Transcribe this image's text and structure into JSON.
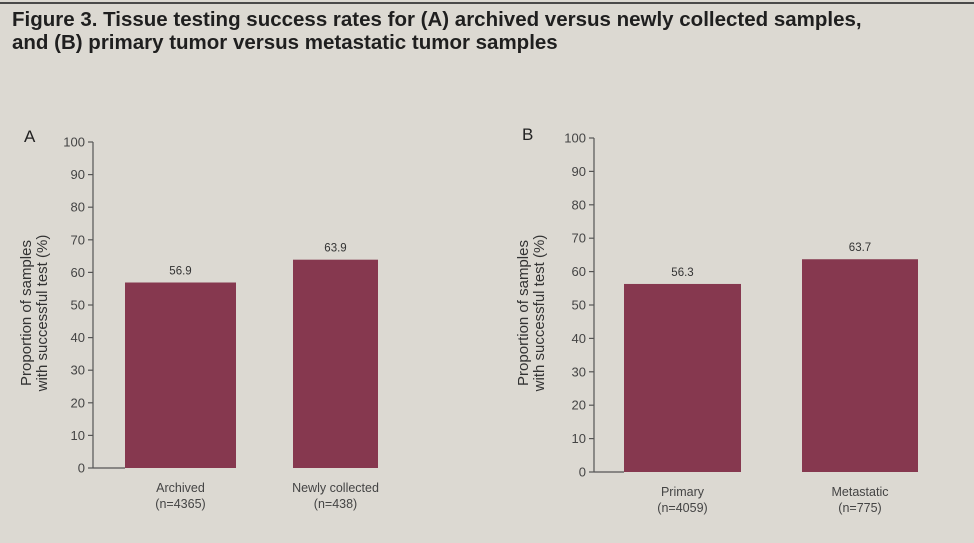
{
  "figure": {
    "title_line1": "Figure 3. Tissue testing success rates for (A) archived versus newly collected samples,",
    "title_line2": "and (B) primary tumor versus metastatic tumor samples"
  },
  "colors": {
    "bar": "#86384f",
    "background": "#dcd9d2"
  },
  "chart_data": [
    {
      "type": "bar",
      "panel": "A",
      "ylabel_line1": "Proportion of samples",
      "ylabel_line2": "with successful test (%)",
      "ylim": [
        0,
        100
      ],
      "yticks": [
        0,
        10,
        20,
        30,
        40,
        50,
        60,
        70,
        80,
        90,
        100
      ],
      "categories": [
        {
          "name": "Archived",
          "n": "(n=4365)"
        },
        {
          "name": "Newly collected",
          "n": "(n=438)"
        }
      ],
      "values": [
        56.9,
        63.9
      ],
      "data_labels": [
        "56.9",
        "63.9"
      ]
    },
    {
      "type": "bar",
      "panel": "B",
      "ylabel_line1": "Proportion of samples",
      "ylabel_line2": "with successful test (%)",
      "ylim": [
        0,
        100
      ],
      "yticks": [
        0,
        10,
        20,
        30,
        40,
        50,
        60,
        70,
        80,
        90,
        100
      ],
      "categories": [
        {
          "name": "Primary",
          "n": "(n=4059)"
        },
        {
          "name": "Metastatic",
          "n": "(n=775)"
        }
      ],
      "values": [
        56.3,
        63.7
      ],
      "data_labels": [
        "56.3",
        "63.7"
      ]
    }
  ]
}
